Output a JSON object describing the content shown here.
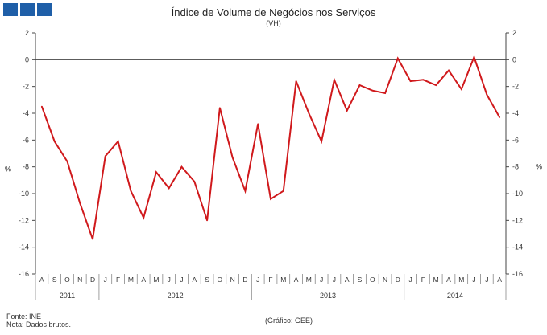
{
  "chart_data": {
    "type": "line",
    "title": "Índice de Volume  de Negócios nos Serviços",
    "subtitle": "(VH)",
    "ylabel_left": "%",
    "ylabel_right": "%",
    "ylim": [
      -16,
      2
    ],
    "yticks": [
      2,
      0,
      -2,
      -4,
      -6,
      -8,
      -10,
      -12,
      -14,
      -16
    ],
    "grid": false,
    "months": [
      "A",
      "S",
      "O",
      "N",
      "D",
      "J",
      "F",
      "M",
      "A",
      "M",
      "J",
      "J",
      "A",
      "S",
      "O",
      "N",
      "D",
      "J",
      "F",
      "M",
      "A",
      "M",
      "J",
      "J",
      "A",
      "S",
      "O",
      "N",
      "D",
      "J",
      "F",
      "M",
      "A",
      "M",
      "J",
      "J",
      "A"
    ],
    "years": [
      {
        "label": "2011",
        "start": 0,
        "count": 5
      },
      {
        "label": "2012",
        "start": 5,
        "count": 12
      },
      {
        "label": "2013",
        "start": 17,
        "count": 12
      },
      {
        "label": "2014",
        "start": 29,
        "count": 8
      }
    ],
    "series": [
      {
        "name": "VH",
        "color": "#d0191c",
        "values": [
          -3.5,
          -6.1,
          -7.6,
          -10.7,
          -13.4,
          -7.2,
          -6.1,
          -9.8,
          -11.8,
          -8.4,
          -9.6,
          -8.0,
          -9.1,
          -12.0,
          -3.6,
          -7.3,
          -9.8,
          -4.8,
          -10.4,
          -9.8,
          -1.6,
          -4.0,
          -6.1,
          -1.5,
          -3.8,
          -1.9,
          -2.3,
          -2.5,
          0.1,
          -1.6,
          -1.5,
          -1.9,
          -0.8,
          -2.2,
          0.2,
          -2.6,
          -4.3
        ]
      }
    ]
  },
  "footer": {
    "source": "Fonte: INE",
    "note": "Nota: Dados brutos.",
    "credit": "(Gráfico: GEE)"
  }
}
